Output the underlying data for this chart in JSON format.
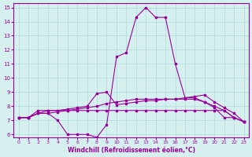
{
  "xlabel": "Windchill (Refroidissement éolien,°C)",
  "background_color": "#d6f0f0",
  "line_color": "#990099",
  "grid_color": "#b0dada",
  "xlim": [
    0,
    23
  ],
  "ylim": [
    6,
    15
  ],
  "xticks": [
    0,
    1,
    2,
    3,
    4,
    5,
    6,
    7,
    8,
    9,
    10,
    11,
    12,
    13,
    14,
    15,
    16,
    17,
    18,
    19,
    20,
    21,
    22,
    23
  ],
  "yticks": [
    6,
    7,
    8,
    9,
    10,
    11,
    12,
    13,
    14,
    15
  ],
  "line1_x": [
    0,
    1,
    2,
    3,
    4,
    5,
    6,
    7,
    8,
    9,
    10,
    11,
    12,
    13,
    14,
    15,
    16,
    17,
    18,
    19,
    20,
    21,
    22,
    23
  ],
  "line1_y": [
    7.2,
    7.2,
    7.5,
    7.5,
    7.0,
    6.0,
    6.0,
    6.0,
    5.8,
    6.7,
    11.5,
    11.8,
    14.3,
    15.0,
    14.3,
    14.3,
    11.0,
    8.6,
    8.6,
    8.3,
    7.9,
    7.2,
    7.2,
    6.9
  ],
  "line2_x": [
    0,
    1,
    2,
    3,
    4,
    5,
    6,
    7,
    8,
    9,
    10,
    11,
    12,
    13,
    14,
    15,
    16,
    17,
    18,
    19,
    20,
    21,
    22,
    23
  ],
  "line2_y": [
    7.2,
    7.2,
    7.7,
    7.7,
    7.7,
    7.7,
    7.7,
    7.7,
    7.7,
    7.7,
    7.7,
    7.7,
    7.7,
    7.7,
    7.7,
    7.7,
    7.7,
    7.7,
    7.7,
    7.7,
    7.7,
    7.7,
    7.2,
    6.9
  ],
  "line3_x": [
    0,
    1,
    2,
    3,
    4,
    5,
    6,
    7,
    8,
    9,
    10,
    11,
    12,
    13,
    14,
    15,
    16,
    17,
    18,
    19,
    20,
    21,
    22,
    23
  ],
  "line3_y": [
    7.2,
    7.2,
    7.5,
    7.7,
    7.7,
    7.8,
    7.9,
    8.0,
    8.9,
    9.0,
    8.1,
    8.2,
    8.3,
    8.4,
    8.4,
    8.5,
    8.5,
    8.6,
    8.7,
    8.8,
    8.3,
    7.9,
    7.5,
    6.9
  ],
  "line4_x": [
    0,
    1,
    2,
    3,
    4,
    5,
    6,
    7,
    8,
    9,
    10,
    11,
    12,
    13,
    14,
    15,
    16,
    17,
    18,
    19,
    20,
    21,
    22,
    23
  ],
  "line4_y": [
    7.2,
    7.2,
    7.5,
    7.5,
    7.6,
    7.7,
    7.8,
    7.9,
    8.0,
    8.2,
    8.3,
    8.4,
    8.5,
    8.5,
    8.5,
    8.5,
    8.5,
    8.5,
    8.5,
    8.3,
    8.0,
    7.7,
    7.2,
    6.9
  ]
}
